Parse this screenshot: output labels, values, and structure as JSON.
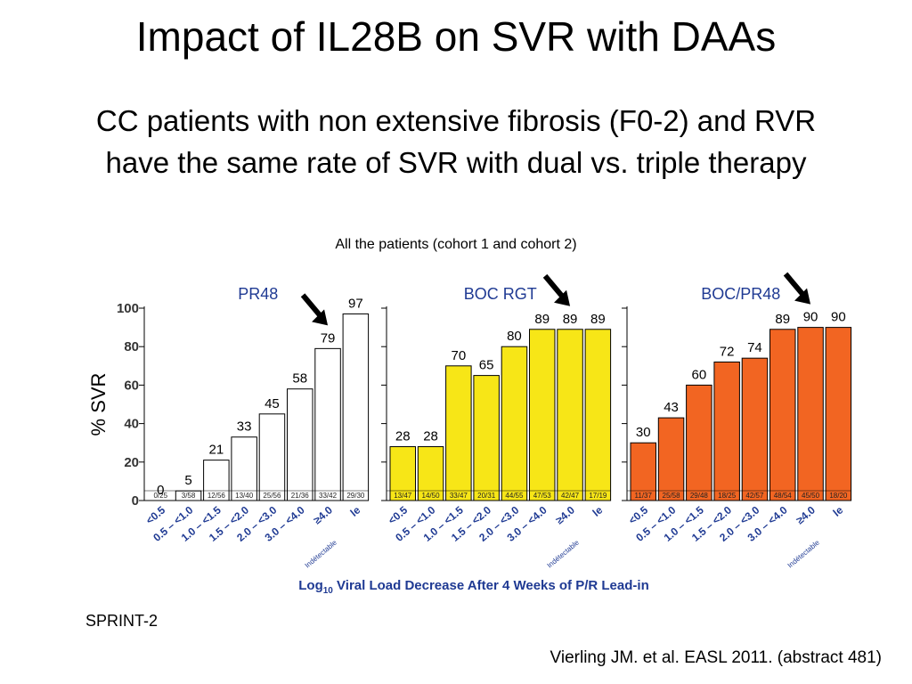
{
  "header": {
    "title": "Impact of IL28B on SVR with DAAs",
    "subtitle_line1": "CC patients with non extensive fibrosis (F0-2) and RVR",
    "subtitle_line2": "have the same rate of SVR with dual vs. triple therapy",
    "cohort_note": "All the patients (cohort 1 and cohort 2)"
  },
  "footer": {
    "study": "SPRINT-2",
    "reference": "Vierling JM. et al. EASL 2011. (abstract 481)"
  },
  "colors": {
    "pr48": "#ffffff",
    "boc_rgt": "#f7e617",
    "boc_pr48": "#f26522",
    "panel_title": "#1f3a93",
    "axis_label": "#1f3a93"
  },
  "chart_data": {
    "type": "bar",
    "ylabel": "% SVR",
    "xlabel_prefix": "Log",
    "xlabel_sub": "10",
    "xlabel_suffix": " Viral Load Decrease After 4 Weeks of P/R Lead-in",
    "ylim": [
      0,
      100
    ],
    "yticks": [
      "0",
      "20",
      "40",
      "60",
      "80",
      "100"
    ],
    "categories": [
      "<0.5",
      "0.5 – <1.0",
      "1.0 – <1.5",
      "1.5 – <2.0",
      "2.0 – <3.0",
      "3.0 – <4.0",
      "≥4.0",
      "Indétectable"
    ],
    "category_display": [
      "<0.5",
      "0.5 – <1.0",
      "1.0 – <1.5",
      "1.5 – <2.0",
      "2.0 – <3.0",
      "3.0 – <4.0",
      "≥4.0",
      "le"
    ],
    "undetectable_label": "Indétectable",
    "series": [
      {
        "name": "PR48",
        "values": [
          0,
          5,
          21,
          33,
          45,
          58,
          79,
          97
        ],
        "counts": [
          "0/25",
          "3/58",
          "12/56",
          "13/40",
          "25/56",
          "21/36",
          "33/42",
          "29/30"
        ]
      },
      {
        "name": "BOC RGT",
        "values": [
          28,
          28,
          70,
          65,
          80,
          89,
          89,
          89
        ],
        "counts": [
          "13/47",
          "14/50",
          "33/47",
          "20/31",
          "44/55",
          "47/53",
          "42/47",
          "17/19"
        ]
      },
      {
        "name": "BOC/PR48",
        "values": [
          30,
          43,
          60,
          72,
          74,
          89,
          90,
          90
        ],
        "counts": [
          "11/37",
          "25/58",
          "29/48",
          "18/25",
          "42/57",
          "48/54",
          "45/50",
          "18/20"
        ]
      }
    ],
    "arrows_on_category": "≥4.0"
  }
}
